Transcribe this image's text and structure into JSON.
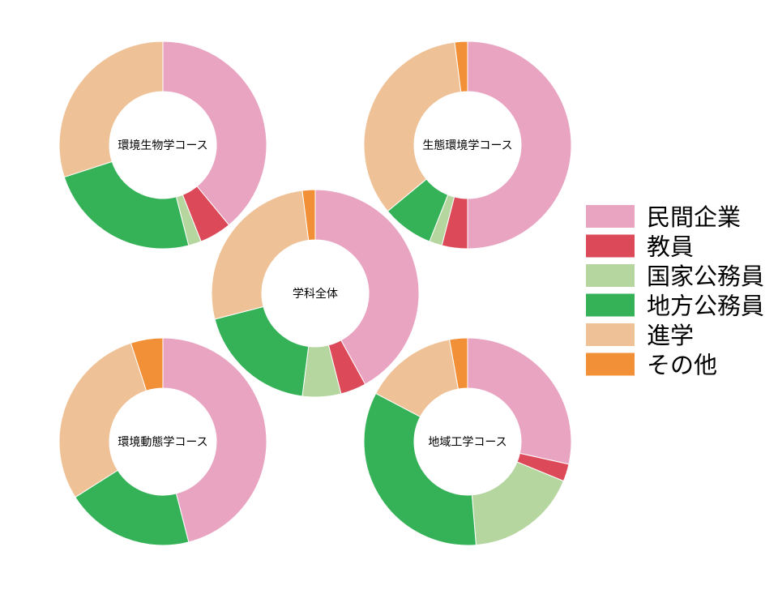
{
  "chart_data": [
    {
      "type": "pie",
      "donut": true,
      "title": "環境生物学コース",
      "categories": [
        "民間企業",
        "教員",
        "国家公務員",
        "地方公務員",
        "進学",
        "その他"
      ],
      "values": [
        39,
        5,
        2,
        24,
        30,
        0
      ]
    },
    {
      "type": "pie",
      "donut": true,
      "title": "生態環境学コース",
      "categories": [
        "民間企業",
        "教員",
        "国家公務員",
        "地方公務員",
        "進学",
        "その他"
      ],
      "values": [
        50,
        4,
        2,
        8,
        34,
        2
      ]
    },
    {
      "type": "pie",
      "donut": true,
      "title": "学科全体",
      "categories": [
        "民間企業",
        "教員",
        "国家公務員",
        "地方公務員",
        "進学",
        "その他"
      ],
      "values": [
        42,
        4,
        6,
        19,
        27,
        2
      ]
    },
    {
      "type": "pie",
      "donut": true,
      "title": "環境動態学コース",
      "categories": [
        "民間企業",
        "教員",
        "国家公務員",
        "地方公務員",
        "進学",
        "その他"
      ],
      "values": [
        46,
        0,
        0,
        20,
        29,
        5
      ]
    },
    {
      "type": "pie",
      "donut": true,
      "title": "地域工学コース",
      "categories": [
        "民間企業",
        "教員",
        "国家公務員",
        "地方公務員",
        "進学",
        "その他"
      ],
      "values": [
        28.5,
        2.7,
        17.5,
        34,
        14.5,
        2.8
      ]
    }
  ],
  "legend": {
    "placement": "right",
    "items": [
      {
        "label": "民間企業",
        "color": "#e9a4c2"
      },
      {
        "label": "教員",
        "color": "#dc4a5a"
      },
      {
        "label": "国家公務員",
        "color": "#b5d69f"
      },
      {
        "label": "地方公務員",
        "color": "#35b258"
      },
      {
        "label": "進学",
        "color": "#efc196"
      },
      {
        "label": "その他",
        "color": "#f19037"
      }
    ]
  }
}
